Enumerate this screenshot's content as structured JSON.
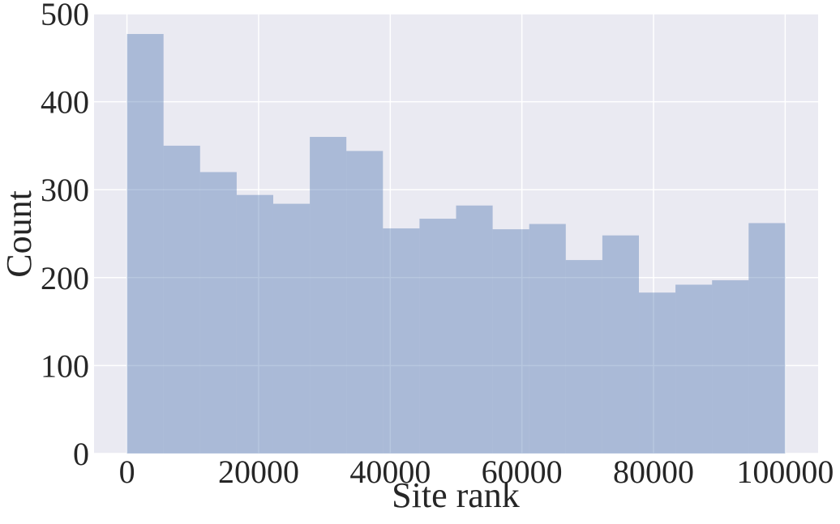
{
  "chart_data": {
    "type": "histogram",
    "xlabel": "Site rank",
    "ylabel": "Count",
    "bins": [
      0,
      5556,
      11111,
      16667,
      22222,
      27778,
      33333,
      38889,
      44444,
      50000,
      55556,
      61111,
      66667,
      72222,
      77778,
      83333,
      88889,
      94444,
      100000
    ],
    "counts": [
      477,
      350,
      320,
      294,
      284,
      360,
      344,
      256,
      267,
      282,
      255,
      261,
      220,
      248,
      183,
      192,
      197,
      262
    ],
    "color": "#4c72b0",
    "opacity": 0.4,
    "xlim": [
      -5000,
      105000
    ],
    "ylim": [
      0,
      500
    ],
    "xticks": [
      0,
      20000,
      40000,
      60000,
      80000,
      100000
    ],
    "yticks": [
      0,
      100,
      200,
      300,
      400,
      500
    ],
    "grid": true
  }
}
